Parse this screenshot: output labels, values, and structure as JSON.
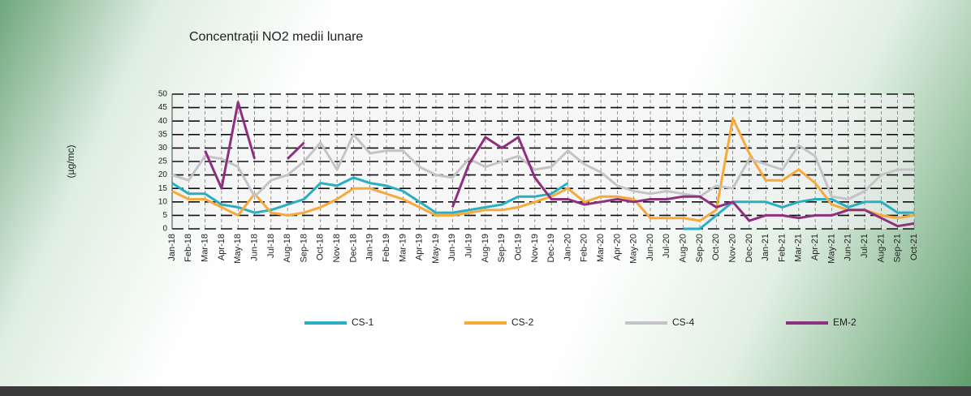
{
  "chart_data": {
    "type": "line",
    "title": "Concentrații NO2 medii lunare",
    "y_label": "(µg/mc)",
    "categories": [
      "Jan-18",
      "Feb-18",
      "Mar-18",
      "Apr-18",
      "May-18",
      "Jun-18",
      "Jul-18",
      "Aug-18",
      "Sep-18",
      "Oct-18",
      "Nov-18",
      "Dec-18",
      "Jan-19",
      "Feb-19",
      "Mar-19",
      "Apr-19",
      "May-19",
      "Jun-19",
      "Jul-19",
      "Aug-19",
      "Sep-19",
      "Oct-19",
      "Nov-19",
      "Dec-19",
      "Jan-20",
      "Feb-20",
      "Mar-20",
      "Apr-20",
      "May-20",
      "Jun-20",
      "Jul-20",
      "Aug-20",
      "Sep-20",
      "Oct-20",
      "Nov-20",
      "Dec-20",
      "Jan-21",
      "Feb-21",
      "Mar-21",
      "Apr-21",
      "May-21",
      "Jun-21",
      "Jul-21",
      "Aug-21",
      "Sep-21",
      "Oct-21"
    ],
    "series": [
      {
        "name": "CS-1",
        "color": "#2aafc2",
        "values": [
          17,
          13,
          13,
          9,
          8,
          6,
          7,
          9,
          11,
          17,
          16,
          19,
          17,
          16,
          14,
          10,
          6,
          6,
          7,
          8,
          9,
          12,
          12,
          13,
          17,
          null,
          null,
          null,
          null,
          null,
          null,
          0,
          0,
          5,
          10,
          10,
          10,
          8,
          10,
          11,
          11,
          8,
          10,
          10,
          6,
          6
        ]
      },
      {
        "name": "CS-2",
        "color": "#f7a93a",
        "values": [
          14,
          11,
          11,
          8,
          5,
          13,
          6,
          5,
          6,
          8,
          11,
          15,
          15,
          13,
          11,
          8,
          5,
          5,
          6,
          7,
          7,
          8,
          10,
          12,
          15,
          10,
          12,
          12,
          11,
          4,
          4,
          4,
          3,
          7,
          41,
          28,
          18,
          18,
          22,
          17,
          9,
          7,
          7,
          5,
          4,
          5
        ]
      },
      {
        "name": "CS-4",
        "color": "#c4c4c8",
        "values": [
          20,
          18,
          27,
          26,
          23,
          12,
          18,
          20,
          25,
          32,
          22,
          35,
          28,
          29,
          29,
          23,
          20,
          19,
          26,
          23,
          25,
          27,
          22,
          23,
          29,
          24,
          21,
          16,
          14,
          13,
          14,
          13,
          12,
          16,
          15,
          26,
          24,
          22,
          31,
          27,
          12,
          11,
          14,
          20,
          22,
          22
        ]
      },
      {
        "name": "EM-2",
        "color": "#8e2f7f",
        "values": [
          null,
          null,
          29,
          15,
          47,
          26,
          null,
          26,
          32,
          null,
          null,
          null,
          null,
          null,
          null,
          null,
          null,
          8,
          24,
          34,
          30,
          34,
          19,
          11,
          11,
          9,
          10,
          11,
          10,
          11,
          11,
          12,
          12,
          8,
          10,
          3,
          5,
          5,
          4,
          5,
          5,
          7,
          7,
          4,
          1,
          2
        ]
      }
    ],
    "ylim": [
      0,
      50
    ],
    "yticks": [
      0,
      5,
      10,
      15,
      20,
      25,
      30,
      35,
      40,
      45,
      50
    ],
    "grid": true
  }
}
